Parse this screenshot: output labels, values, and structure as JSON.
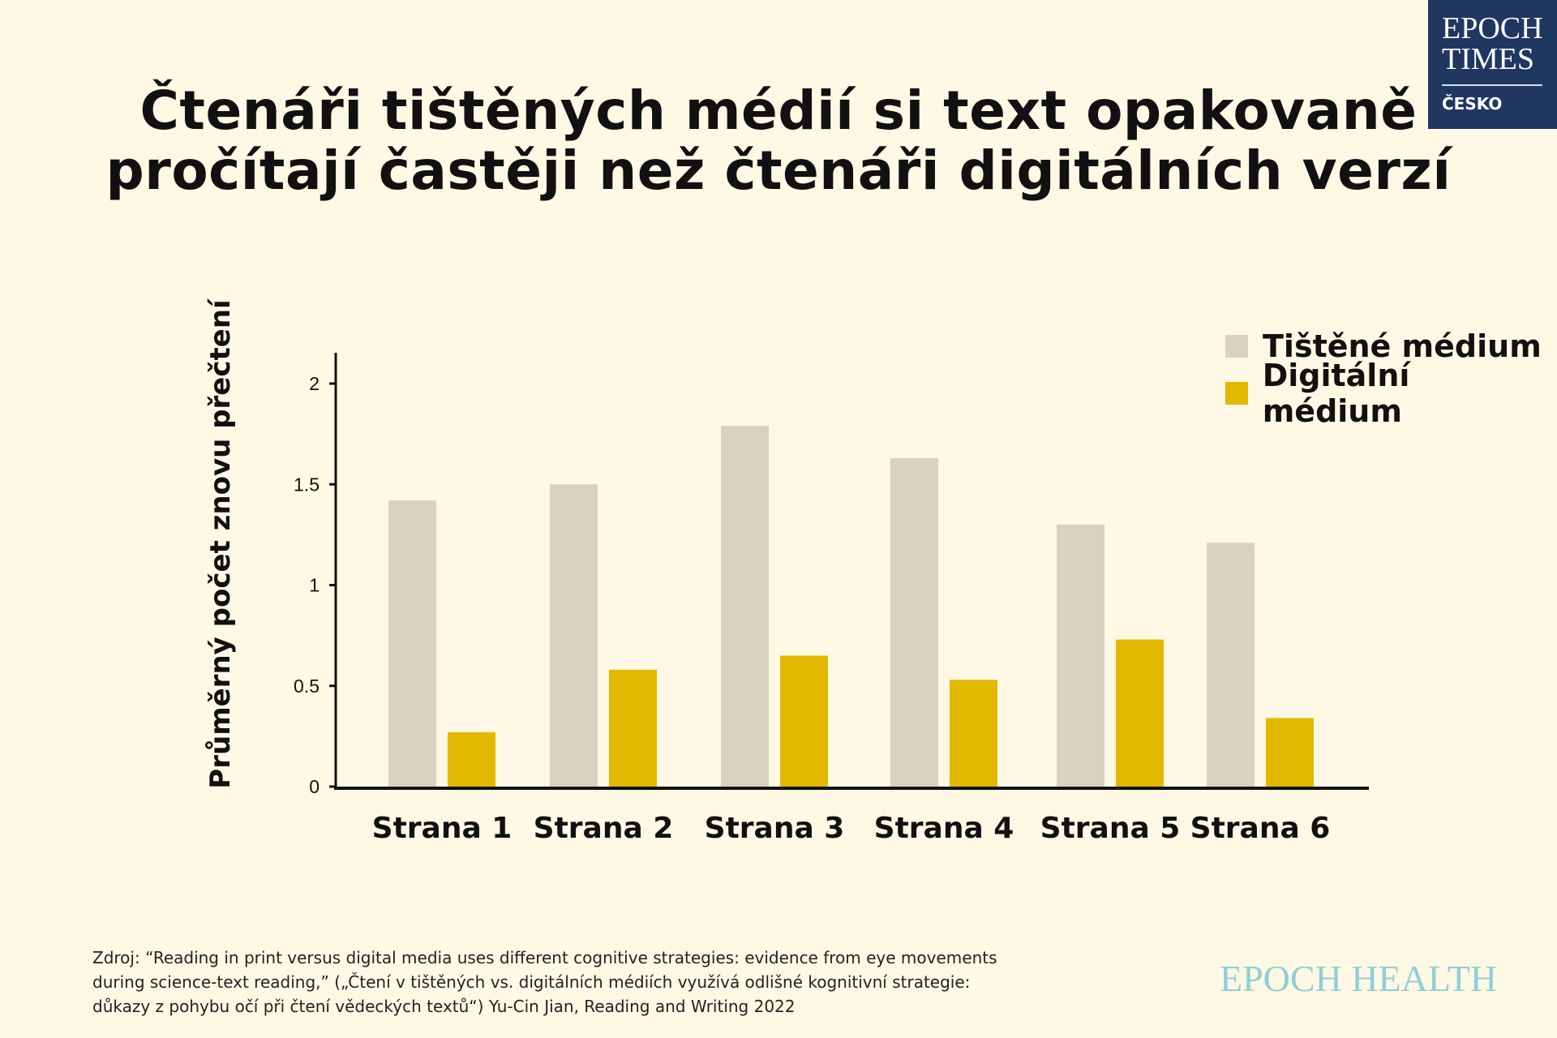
{
  "title_lines": [
    "Čtenáři tištěných médií si text opakovaně",
    "pročítají častěji než čtenáři digitálních verzí"
  ],
  "logo": {
    "line1": "EPOCH",
    "line2": "TIMES",
    "edition": "ČESKO"
  },
  "chart_data": {
    "type": "bar",
    "title": "Čtenáři tištěných médií si text opakovaně pročítají častěji než čtenáři digitálních verzí",
    "xlabel": "",
    "ylabel": "Průměrný počet znovu přečtení",
    "categories": [
      "Strana 1",
      "Strana 2",
      "Strana 3",
      "Strana 4",
      "Strana 5",
      "Strana 6"
    ],
    "series": [
      {
        "name": "Tištěné médium",
        "color": "#d9d1c1",
        "values": [
          1.42,
          1.5,
          1.79,
          1.63,
          1.3,
          1.21
        ]
      },
      {
        "name": "Digitální médium",
        "color": "#e2b900",
        "values": [
          0.27,
          0.58,
          0.65,
          0.53,
          0.73,
          0.34
        ]
      }
    ],
    "ylim": [
      0,
      2.15
    ],
    "yticks": [
      0,
      0.5,
      1,
      1.5,
      2
    ],
    "ytick_labels": [
      "0",
      "0.5",
      "1",
      "1.5",
      "2"
    ],
    "grid": false,
    "legend_position": "top-right"
  },
  "source": {
    "lines": [
      "Zdroj: “Reading in print versus digital media uses different cognitive strategies: evidence from eye movements",
      "during science-text reading,” („Čtení v tištěných vs. digitálních médiích využívá odlišné kognitivní strategie:",
      "důkazy z pohybu očí při čtení vědeckých textů“) Yu-Cin Jian, Reading and Writing 2022"
    ]
  },
  "footer_brand": "EPOCH HEALTH"
}
